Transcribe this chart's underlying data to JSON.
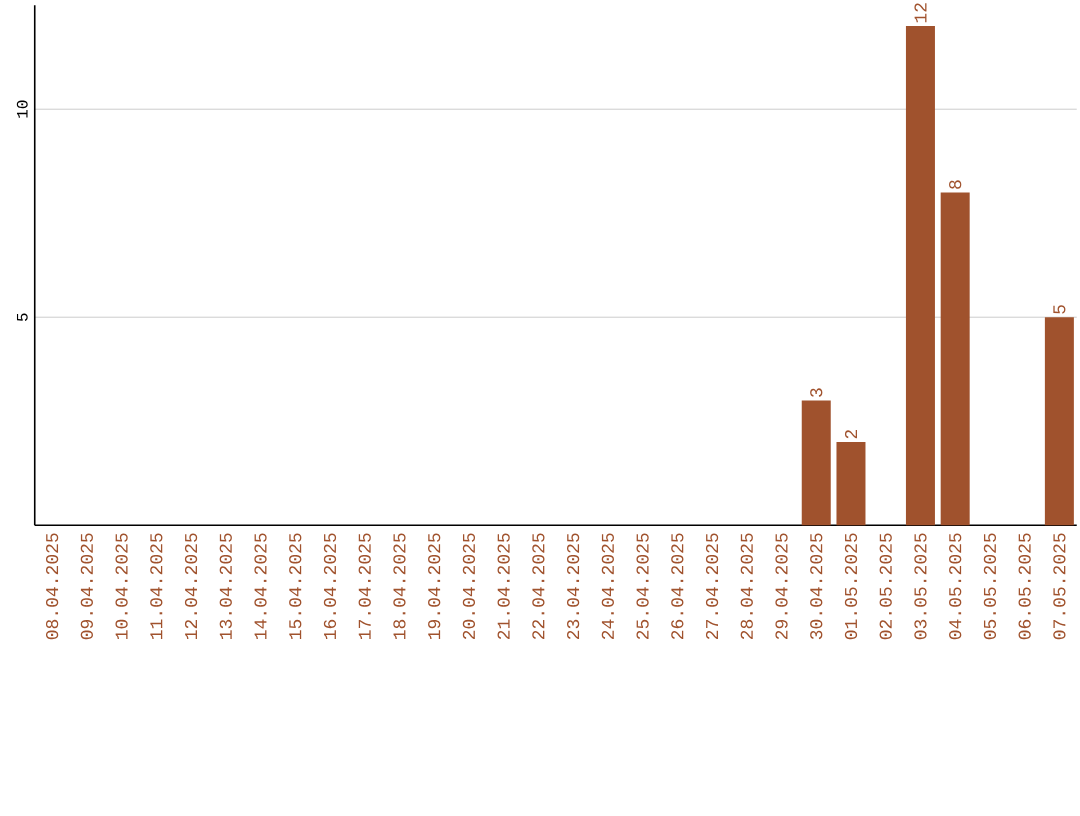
{
  "chart_data": {
    "type": "bar",
    "categories": [
      "08.04.2025",
      "09.04.2025",
      "10.04.2025",
      "11.04.2025",
      "12.04.2025",
      "13.04.2025",
      "14.04.2025",
      "15.04.2025",
      "16.04.2025",
      "17.04.2025",
      "18.04.2025",
      "19.04.2025",
      "20.04.2025",
      "21.04.2025",
      "22.04.2025",
      "23.04.2025",
      "24.04.2025",
      "25.04.2025",
      "26.04.2025",
      "27.04.2025",
      "28.04.2025",
      "29.04.2025",
      "30.04.2025",
      "01.05.2025",
      "02.05.2025",
      "03.05.2025",
      "04.05.2025",
      "05.05.2025",
      "06.05.2025",
      "07.05.2025"
    ],
    "values": [
      0,
      0,
      0,
      0,
      0,
      0,
      0,
      0,
      0,
      0,
      0,
      0,
      0,
      0,
      0,
      0,
      0,
      0,
      0,
      0,
      0,
      0,
      3,
      2,
      0,
      12,
      8,
      0,
      0,
      5
    ],
    "value_labels": [
      null,
      null,
      null,
      null,
      null,
      null,
      null,
      null,
      null,
      null,
      null,
      null,
      null,
      null,
      null,
      null,
      null,
      null,
      null,
      null,
      null,
      null,
      "3",
      "2",
      null,
      "12",
      "8",
      null,
      null,
      "5"
    ],
    "color": "#a0522d",
    "ylim": [
      0,
      12.5
    ],
    "yticks": [
      5,
      10
    ],
    "grid": "y"
  }
}
